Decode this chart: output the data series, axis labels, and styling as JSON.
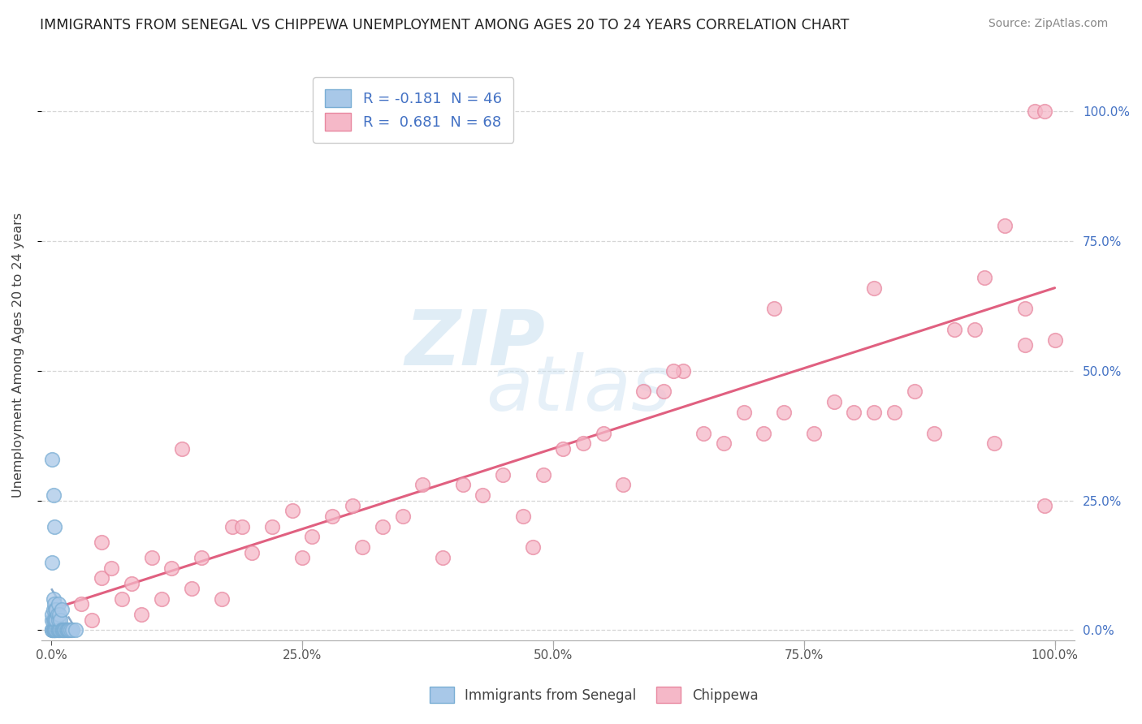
{
  "title": "IMMIGRANTS FROM SENEGAL VS CHIPPEWA UNEMPLOYMENT AMONG AGES 20 TO 24 YEARS CORRELATION CHART",
  "source": "Source: ZipAtlas.com",
  "ylabel": "Unemployment Among Ages 20 to 24 years",
  "r_senegal": -0.181,
  "n_senegal": 46,
  "r_chippewa": 0.681,
  "n_chippewa": 68,
  "color_senegal_fill": "#a8c8e8",
  "color_senegal_edge": "#7aaed4",
  "color_chippewa_fill": "#f5b8c8",
  "color_chippewa_edge": "#e888a0",
  "trendline_chippewa": "#e06080",
  "trendline_senegal": "#88aacc",
  "right_axis_color": "#4472c4",
  "background_color": "#ffffff",
  "watermark_zip": "ZIP",
  "watermark_atlas": "atlas",
  "xlim": [
    0.0,
    1.0
  ],
  "ylim": [
    0.0,
    1.05
  ],
  "x_ticks": [
    0.0,
    0.25,
    0.5,
    0.75,
    1.0
  ],
  "x_labels": [
    "0.0%",
    "25.0%",
    "50.0%",
    "75.0%",
    "100.0%"
  ],
  "y_ticks": [
    0.0,
    0.25,
    0.5,
    0.75,
    1.0
  ],
  "y_labels": [
    "0.0%",
    "25.0%",
    "50.0%",
    "75.0%",
    "100.0%"
  ],
  "legend_entry1": "R = -0.181  N = 46",
  "legend_entry2": "R =  0.681  N = 68",
  "bottom_legend1": "Immigrants from Senegal",
  "bottom_legend2": "Chippewa",
  "senegal_x": [
    0.001,
    0.001,
    0.001,
    0.001,
    0.001,
    0.002,
    0.002,
    0.002,
    0.002,
    0.002,
    0.003,
    0.003,
    0.003,
    0.003,
    0.004,
    0.004,
    0.004,
    0.005,
    0.005,
    0.005,
    0.006,
    0.006,
    0.007,
    0.007,
    0.007,
    0.008,
    0.008,
    0.009,
    0.009,
    0.01,
    0.01,
    0.011,
    0.012,
    0.013,
    0.014,
    0.015,
    0.016,
    0.017,
    0.018,
    0.019,
    0.021,
    0.024,
    0.001,
    0.002,
    0.003,
    0.001
  ],
  "senegal_y": [
    0.0,
    0.0,
    0.0,
    0.02,
    0.03,
    0.0,
    0.0,
    0.02,
    0.04,
    0.06,
    0.0,
    0.0,
    0.02,
    0.05,
    0.0,
    0.02,
    0.04,
    0.0,
    0.02,
    0.04,
    0.0,
    0.03,
    0.0,
    0.02,
    0.05,
    0.0,
    0.03,
    0.0,
    0.02,
    0.0,
    0.04,
    0.0,
    0.0,
    0.0,
    0.0,
    0.0,
    0.0,
    0.0,
    0.0,
    0.0,
    0.0,
    0.0,
    0.33,
    0.26,
    0.2,
    0.13
  ],
  "chippewa_x": [
    0.03,
    0.04,
    0.05,
    0.06,
    0.07,
    0.08,
    0.09,
    0.1,
    0.11,
    0.12,
    0.13,
    0.14,
    0.15,
    0.17,
    0.18,
    0.19,
    0.2,
    0.22,
    0.24,
    0.26,
    0.28,
    0.3,
    0.31,
    0.33,
    0.35,
    0.37,
    0.39,
    0.41,
    0.43,
    0.45,
    0.47,
    0.49,
    0.51,
    0.53,
    0.55,
    0.57,
    0.59,
    0.61,
    0.63,
    0.65,
    0.67,
    0.69,
    0.71,
    0.73,
    0.76,
    0.78,
    0.8,
    0.82,
    0.84,
    0.86,
    0.88,
    0.9,
    0.92,
    0.94,
    0.97,
    0.97,
    0.98,
    0.99,
    0.99,
    1.0,
    0.05,
    0.25,
    0.48,
    0.62,
    0.72,
    0.82,
    0.93,
    0.95
  ],
  "chippewa_y": [
    0.05,
    0.02,
    0.1,
    0.12,
    0.06,
    0.09,
    0.03,
    0.14,
    0.06,
    0.12,
    0.35,
    0.08,
    0.14,
    0.06,
    0.2,
    0.2,
    0.15,
    0.2,
    0.23,
    0.18,
    0.22,
    0.24,
    0.16,
    0.2,
    0.22,
    0.28,
    0.14,
    0.28,
    0.26,
    0.3,
    0.22,
    0.3,
    0.35,
    0.36,
    0.38,
    0.28,
    0.46,
    0.46,
    0.5,
    0.38,
    0.36,
    0.42,
    0.38,
    0.42,
    0.38,
    0.44,
    0.42,
    0.42,
    0.42,
    0.46,
    0.38,
    0.58,
    0.58,
    0.36,
    0.55,
    0.62,
    1.0,
    1.0,
    0.24,
    0.56,
    0.17,
    0.14,
    0.16,
    0.5,
    0.62,
    0.66,
    0.68,
    0.78
  ],
  "chippewa_trend_x0": 0.0,
  "chippewa_trend_x1": 1.0,
  "chippewa_trend_y0": 0.04,
  "chippewa_trend_y1": 0.66,
  "senegal_trend_x0": 0.0,
  "senegal_trend_x1": 0.025,
  "senegal_trend_y0": 0.08,
  "senegal_trend_y1": 0.0
}
